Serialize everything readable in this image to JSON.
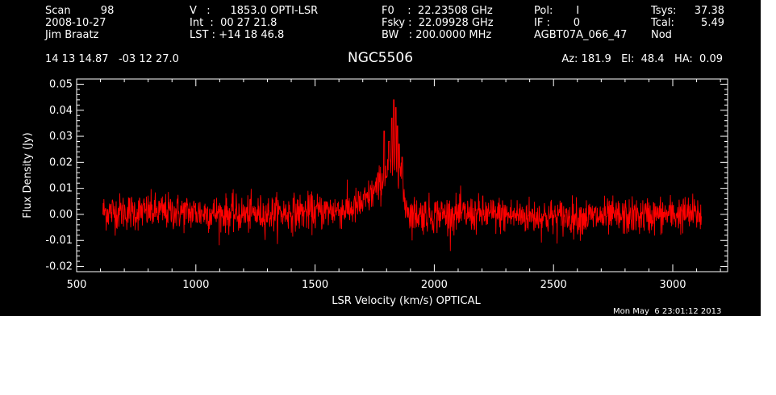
{
  "header": {
    "col1": [
      "Scan         98",
      "2008-10-27",
      "Jim Braatz"
    ],
    "col2": [
      "V   :      1853.0 OPTI-LSR",
      "Int  :  00 27 21.8",
      "LST : +14 18 46.8"
    ],
    "col3": [
      "F0    :  22.23508 GHz",
      "Fsky :  22.09928 GHz",
      "BW   : 200.0000 MHz"
    ],
    "col4": [
      "Pol:       I",
      "IF :       0",
      "AGBT07A_066_47"
    ],
    "col5": [
      "Tsys:",
      "Tcal:",
      "Nod"
    ],
    "col6": [
      "37.38",
      "5.49"
    ],
    "coords": "14 13 14.87   -03 12 27.0",
    "azel": "Az: 181.9   El:  48.4   HA:  0.09",
    "source": "NGC5506",
    "datestamp": "Mon May  6 23:01:12 2013"
  },
  "colors": {
    "background": "#000000",
    "axes": "#ffffff",
    "series": "#ff0000"
  },
  "chart_data": {
    "type": "line",
    "xlabel": "LSR Velocity (km/s) OPTICAL",
    "ylabel": "Flux Density (Jy)",
    "xlim": [
      500,
      3230
    ],
    "ylim": [
      -0.022,
      0.052
    ],
    "xticks": [
      500,
      1000,
      1500,
      2000,
      2500,
      3000
    ],
    "xtick_labels": [
      "500",
      "1000",
      "1500",
      "2000",
      "2500",
      "3000"
    ],
    "yticks": [
      -0.02,
      -0.01,
      0.0,
      0.01,
      0.02,
      0.03,
      0.04,
      0.05
    ],
    "ytick_labels": [
      "-0.02",
      "-0.01",
      "0.00",
      "0.01",
      "0.02",
      "0.03",
      "0.04",
      "0.05"
    ],
    "series": [
      {
        "x_range": [
          610,
          3120
        ],
        "noise_rms": 0.0035,
        "profile_points": [
          [
            610,
            0.001
          ],
          [
            900,
            0.001
          ],
          [
            1200,
            0.0
          ],
          [
            1500,
            0.001
          ],
          [
            1650,
            0.002
          ],
          [
            1700,
            0.004
          ],
          [
            1750,
            0.009
          ],
          [
            1790,
            0.014
          ],
          [
            1820,
            0.018
          ],
          [
            1845,
            0.02
          ],
          [
            1860,
            0.016
          ],
          [
            1875,
            0.005
          ],
          [
            1900,
            0.0
          ],
          [
            2200,
            0.0
          ],
          [
            2500,
            -0.001
          ],
          [
            2800,
            -0.001
          ],
          [
            3000,
            0.0
          ],
          [
            3120,
            0.0
          ]
        ],
        "peaks": [
          [
            1790,
            0.032
          ],
          [
            1810,
            0.028
          ],
          [
            1822,
            0.037
          ],
          [
            1830,
            0.044
          ],
          [
            1838,
            0.041
          ],
          [
            1845,
            0.034
          ],
          [
            1852,
            0.027
          ],
          [
            1865,
            0.022
          ]
        ]
      }
    ]
  }
}
